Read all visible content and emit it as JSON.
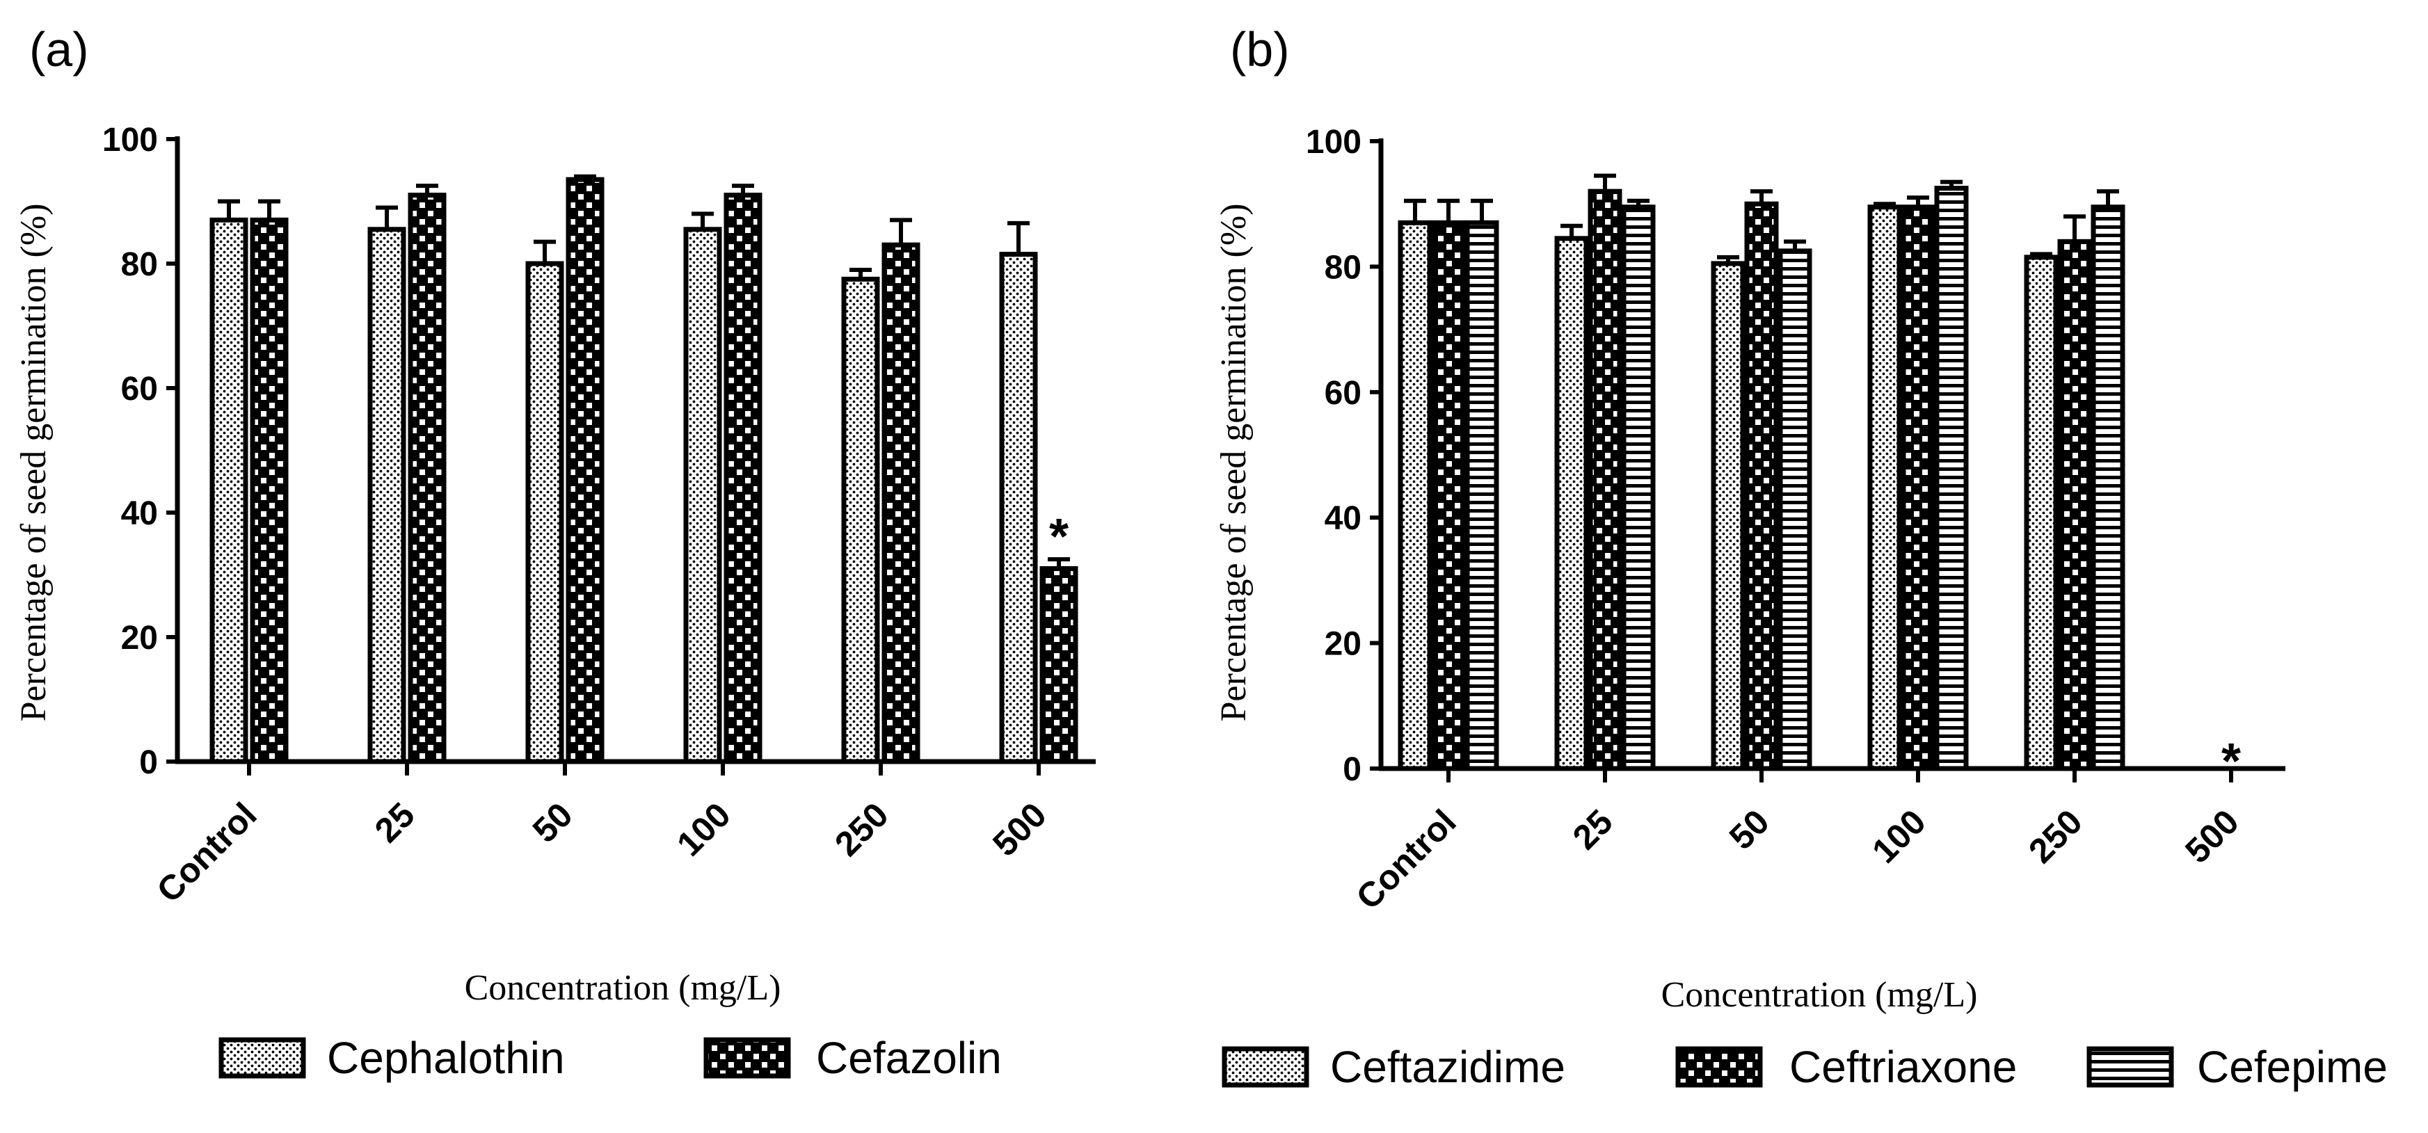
{
  "chart_data": [
    {
      "panel_label": "(a)",
      "type": "bar",
      "ylabel": "Percentage of seed germination (%)",
      "xlabel": "Concentration (mg/L)",
      "ylim": [
        0,
        100
      ],
      "yticks": [
        "0",
        "20",
        "40",
        "60",
        "80",
        "100"
      ],
      "categories": [
        "Control",
        "25",
        "50",
        "100",
        "250",
        "500"
      ],
      "series": [
        {
          "name": "Cephalothin",
          "pattern": "dots",
          "values": [
            87,
            85.5,
            80,
            85.5,
            77.5,
            81.5
          ],
          "errors": [
            3,
            3.5,
            3.5,
            2.5,
            1.5,
            5
          ]
        },
        {
          "name": "Cefazolin",
          "pattern": "checker",
          "values": [
            87,
            91,
            93.5,
            91,
            83,
            31
          ],
          "errors": [
            3,
            1.5,
            0.5,
            1.5,
            4,
            1.5
          ]
        }
      ],
      "annotations": [
        {
          "category": "500",
          "series": "Cefazolin",
          "text": "*"
        }
      ],
      "legend_position": "bottom"
    },
    {
      "panel_label": "(b)",
      "type": "bar",
      "ylabel": "Percentage of seed germination (%)",
      "xlabel": "Concentration (mg/L)",
      "ylim": [
        0,
        100
      ],
      "yticks": [
        "0",
        "20",
        "40",
        "60",
        "80",
        "100"
      ],
      "categories": [
        "Control",
        "25",
        "50",
        "100",
        "250",
        "500"
      ],
      "series": [
        {
          "name": "Ceftazidime",
          "pattern": "dots",
          "values": [
            87,
            84.5,
            80.5,
            89.5,
            81.5,
            0
          ],
          "errors": [
            3.5,
            2,
            1,
            0.5,
            0.5,
            0
          ]
        },
        {
          "name": "Ceftriaxone",
          "pattern": "checker",
          "values": [
            87,
            92,
            90,
            89.5,
            84,
            0
          ],
          "errors": [
            3.5,
            2.5,
            2,
            1.5,
            4,
            0
          ]
        },
        {
          "name": "Cefepime",
          "pattern": "hstripes",
          "values": [
            87,
            89.5,
            82.5,
            92.5,
            89.5,
            0
          ],
          "errors": [
            3.5,
            1,
            1.5,
            1,
            2.5,
            0
          ]
        }
      ],
      "annotations": [
        {
          "category": "500",
          "series": "all",
          "text": "*"
        }
      ],
      "legend_position": "bottom"
    }
  ]
}
